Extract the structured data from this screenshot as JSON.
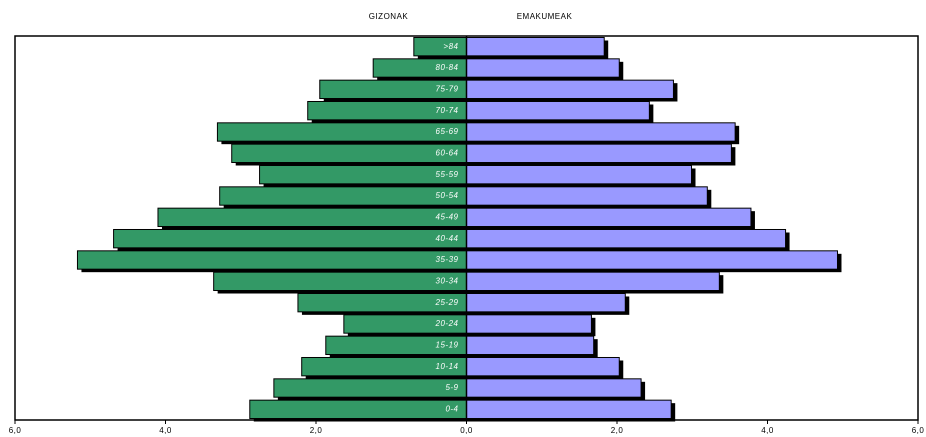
{
  "chart_data": {
    "type": "pyramid",
    "categories": [
      "0-4",
      "5-9",
      "10-14",
      "15-19",
      "20-24",
      "25-29",
      "30-34",
      "35-39",
      "40-44",
      "45-49",
      "50-54",
      "55-59",
      "60-64",
      "65-69",
      "70-74",
      "75-79",
      "80-84",
      ">84"
    ],
    "series": [
      {
        "name": "GIZONAK",
        "color": "#339966",
        "side": "left",
        "values": [
          2.88,
          2.56,
          2.19,
          1.87,
          1.63,
          2.24,
          3.36,
          5.17,
          4.69,
          4.1,
          3.28,
          2.75,
          3.12,
          3.31,
          2.11,
          1.95,
          1.24,
          0.7
        ]
      },
      {
        "name": "EMAKUMEAK",
        "color": "#9999ff",
        "side": "right",
        "values": [
          2.72,
          2.32,
          2.03,
          1.69,
          1.66,
          2.11,
          3.36,
          4.93,
          4.24,
          3.78,
          3.2,
          2.99,
          3.52,
          3.57,
          2.43,
          2.75,
          2.03,
          1.83
        ]
      }
    ],
    "xlim": [
      -6,
      6
    ],
    "xticks": [
      {
        "value": -6,
        "label": "6,0"
      },
      {
        "value": -4,
        "label": "4,0"
      },
      {
        "value": -2,
        "label": "2,0"
      },
      {
        "value": 0,
        "label": "0,0"
      },
      {
        "value": 2,
        "label": "2,0"
      },
      {
        "value": 4,
        "label": "4,0"
      },
      {
        "value": 6,
        "label": "6,0"
      }
    ]
  }
}
